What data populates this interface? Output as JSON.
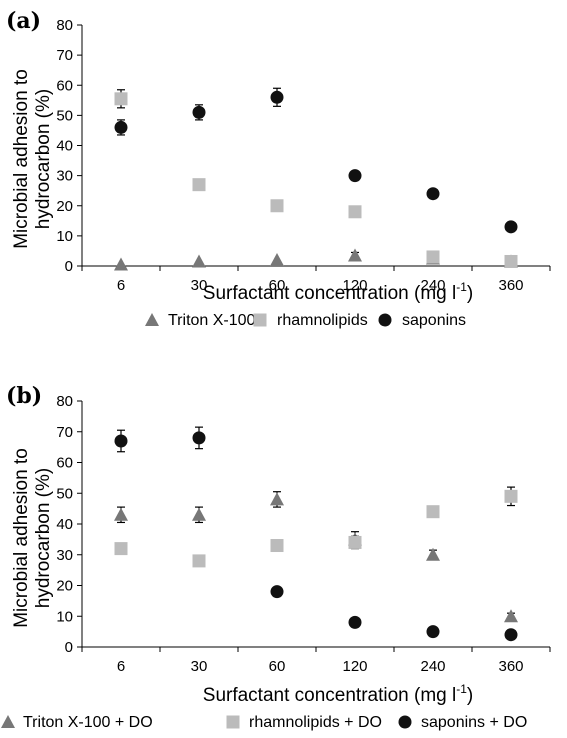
{
  "chart_data": [
    {
      "type": "scatter",
      "panel_label": "(a)",
      "categories": [
        "6",
        "30",
        "60",
        "120",
        "240",
        "360"
      ],
      "ylabel_line1": "Microbial adhesion to",
      "ylabel_line2": "hydrocarbon (%)",
      "xlabel_main": "Surfactant concentration (mg l",
      "xlabel_sup": "-1",
      "xlabel_close": ")",
      "ylim": [
        0,
        80
      ],
      "yticks": [
        "0",
        "10",
        "20",
        "30",
        "40",
        "50",
        "60",
        "70",
        "80"
      ],
      "grid": false,
      "legend_position": "bottom",
      "series": [
        {
          "name": "Triton X-100",
          "marker": "triangle",
          "color": "#777777",
          "values": [
            0.5,
            1.5,
            2,
            3.5,
            2.5,
            1.5
          ],
          "errors": [
            0,
            0,
            0,
            1,
            0,
            0
          ]
        },
        {
          "name": "rhamnolipids",
          "marker": "square",
          "color": "#bbbbbb",
          "values": [
            55.5,
            27,
            20,
            18,
            3,
            1.5
          ],
          "errors": [
            3,
            0,
            0,
            0,
            0,
            0
          ]
        },
        {
          "name": "saponins",
          "marker": "circle",
          "color": "#111111",
          "values": [
            46,
            51,
            56,
            30,
            24,
            13
          ],
          "errors": [
            2.5,
            2.5,
            3,
            0,
            0,
            0
          ]
        }
      ]
    },
    {
      "type": "scatter",
      "panel_label": "(b)",
      "categories": [
        "6",
        "30",
        "60",
        "120",
        "240",
        "360"
      ],
      "ylabel_line1": "Microbial adhesion to",
      "ylabel_line2": "hydrocarbon (%)",
      "xlabel_main": "Surfactant concentration (mg l",
      "xlabel_sup": "-1",
      "xlabel_close": ")",
      "ylim": [
        0,
        80
      ],
      "yticks": [
        "0",
        "10",
        "20",
        "30",
        "40",
        "50",
        "60",
        "70",
        "80"
      ],
      "grid": false,
      "legend_position": "bottom",
      "series": [
        {
          "name": "Triton X-100 + DO",
          "marker": "triangle",
          "color": "#777777",
          "values": [
            43,
            43,
            48,
            35,
            30,
            10
          ],
          "errors": [
            2.5,
            2.5,
            2.5,
            2.5,
            1.5,
            1
          ]
        },
        {
          "name": "rhamnolipids + DO",
          "marker": "square",
          "color": "#bbbbbb",
          "values": [
            32,
            28,
            33,
            34,
            44,
            49
          ],
          "errors": [
            0,
            0,
            0,
            2,
            1.5,
            3
          ]
        },
        {
          "name": "saponins + DO",
          "marker": "circle",
          "color": "#111111",
          "values": [
            67,
            68,
            18,
            8,
            5,
            4
          ],
          "errors": [
            3.5,
            3.5,
            0,
            0,
            0,
            0
          ]
        }
      ]
    }
  ]
}
